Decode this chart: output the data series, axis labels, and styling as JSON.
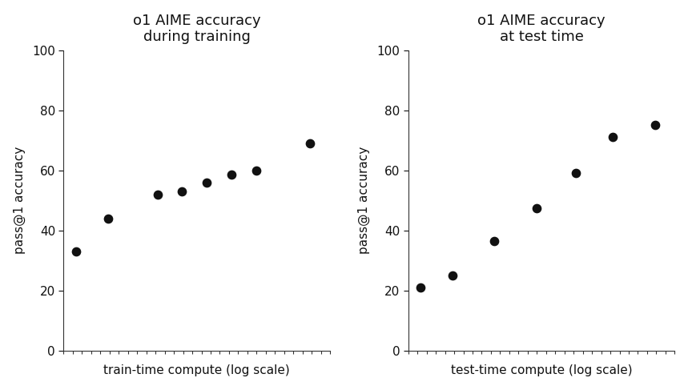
{
  "left_title": "o1 AIME accuracy\nduring training",
  "right_title": "o1 AIME accuracy\nat test time",
  "left_xlabel": "train-time compute (log scale)",
  "right_xlabel": "test-time compute (log scale)",
  "ylabel": "pass@1 accuracy",
  "left_x": [
    0.05,
    0.18,
    0.38,
    0.48,
    0.58,
    0.68,
    0.78,
    1.0
  ],
  "left_y": [
    33,
    44,
    52,
    53,
    56,
    58.5,
    60,
    69
  ],
  "right_x": [
    0.05,
    0.18,
    0.35,
    0.52,
    0.68,
    0.83,
    1.0
  ],
  "right_y": [
    21,
    25,
    36.5,
    47.5,
    59,
    71,
    75
  ],
  "ylim": [
    0,
    100
  ],
  "yticks": [
    0,
    20,
    40,
    60,
    80,
    100
  ],
  "xlim": [
    0.0,
    1.08
  ],
  "dot_color": "#111111",
  "dot_size": 55,
  "bg_color": "#ffffff",
  "title_fontsize": 13,
  "label_fontsize": 11,
  "tick_fontsize": 11,
  "num_xticks": 30
}
